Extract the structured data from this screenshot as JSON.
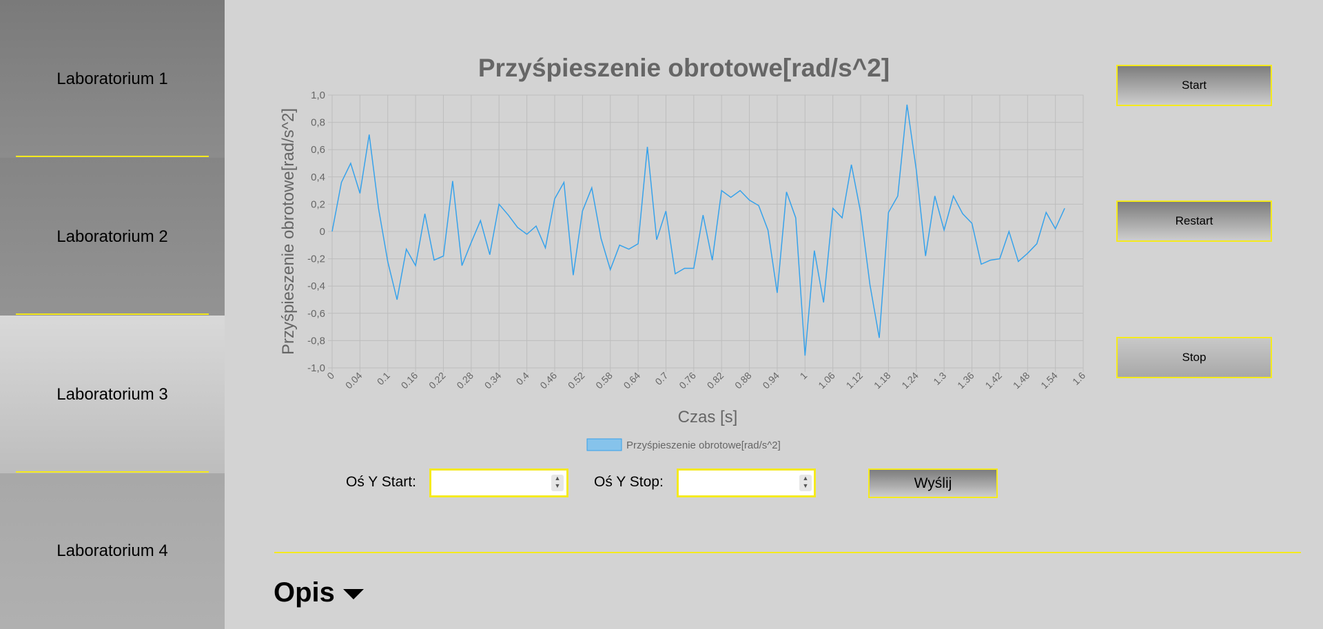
{
  "sidebar": {
    "items": [
      {
        "label": "Laboratorium 1"
      },
      {
        "label": "Laboratorium 2"
      },
      {
        "label": "Laboratorium 3"
      },
      {
        "label": "Laboratorium 4"
      }
    ]
  },
  "controls": {
    "start_label": "Start",
    "restart_label": "Restart",
    "stop_label": "Stop"
  },
  "form": {
    "y_start_label": "Oś Y Start:",
    "y_start_value": "",
    "y_stop_label": "Oś Y Stop:",
    "y_stop_value": "",
    "send_label": "Wyślij"
  },
  "section": {
    "opis_label": "Opis"
  },
  "colors": {
    "accent": "#f5ea1c",
    "line": "#36a2eb",
    "legend_fill": "#86c3eb"
  },
  "chart_data": {
    "type": "line",
    "title": "Przyśpieszenie obrotowe[rad/s^2]",
    "xlabel": "Czas [s]",
    "ylabel": "Przyśpieszenie obrotowe[rad/s^2]",
    "ylim": [
      -1.0,
      1.0
    ],
    "y_ticks": [
      "1,0",
      "0,8",
      "0,6",
      "0,4",
      "0,2",
      "0",
      "-0,2",
      "-0,4",
      "-0,6",
      "-0,8",
      "-1,0"
    ],
    "x_tick_labels": [
      "0",
      "0.04",
      "0.1",
      "0.16",
      "0.22",
      "0.28",
      "0.34",
      "0.4",
      "0.46",
      "0.52",
      "0.58",
      "0.64",
      "0.7",
      "0.76",
      "0.82",
      "0.88",
      "0.94",
      "1",
      "1.06",
      "1.12",
      "1.18",
      "1.24",
      "1.3",
      "1.36",
      "1.42",
      "1.48",
      "1.54",
      "1.6"
    ],
    "grid": true,
    "legend_position": "bottom",
    "series": [
      {
        "name": "Przyśpieszenie obrotowe[rad/s^2]",
        "values": [
          0,
          0.36,
          0.5,
          0.28,
          0.71,
          0.17,
          -0.22,
          -0.5,
          -0.13,
          -0.25,
          0.13,
          -0.21,
          -0.18,
          0.37,
          -0.25,
          -0.08,
          0.08,
          -0.17,
          0.2,
          0.12,
          0.03,
          -0.02,
          0.04,
          -0.12,
          0.24,
          0.36,
          -0.32,
          0.15,
          0.32,
          -0.05,
          -0.28,
          -0.1,
          -0.13,
          -0.09,
          0.62,
          -0.06,
          0.15,
          -0.31,
          -0.27,
          -0.27,
          0.12,
          -0.21,
          0.3,
          0.25,
          0.3,
          0.23,
          0.19,
          0.01,
          -0.45,
          0.29,
          0.1,
          -0.91,
          -0.14,
          -0.52,
          0.17,
          0.1,
          0.49,
          0.14,
          -0.39,
          -0.78,
          0.14,
          0.26,
          0.93,
          0.45,
          -0.18,
          0.26,
          0.01,
          0.26,
          0.13,
          0.06,
          -0.24,
          -0.21,
          -0.2,
          0,
          -0.22,
          -0.16,
          -0.09,
          0.14,
          0.02,
          0.17
        ]
      }
    ]
  }
}
